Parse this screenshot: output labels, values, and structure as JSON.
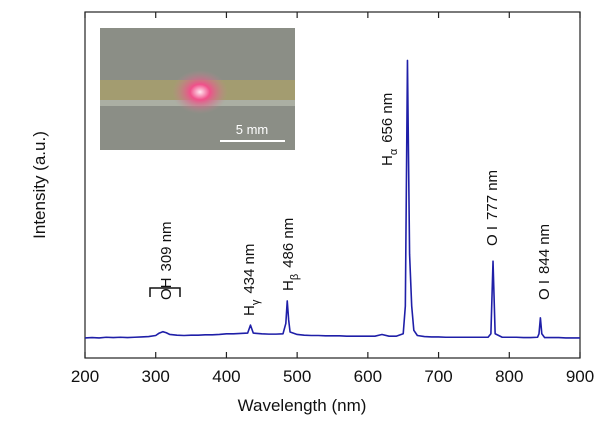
{
  "chart_data": {
    "type": "line",
    "xlabel": "Wavelength (nm)",
    "ylabel": "Intensity (a.u.)",
    "xlim": [
      200,
      900
    ],
    "xticks": [
      200,
      300,
      400,
      500,
      600,
      700,
      800,
      900
    ],
    "ylim": [
      0,
      100
    ],
    "color": "#1f1fa8",
    "x": [
      200,
      210,
      220,
      230,
      240,
      250,
      260,
      270,
      280,
      290,
      300,
      305,
      310,
      315,
      320,
      330,
      340,
      350,
      360,
      370,
      380,
      390,
      400,
      410,
      420,
      430,
      434,
      438,
      450,
      460,
      470,
      480,
      484,
      486,
      488,
      490,
      500,
      510,
      520,
      530,
      540,
      550,
      560,
      570,
      580,
      590,
      600,
      610,
      620,
      630,
      640,
      650,
      653,
      656,
      659,
      662,
      665,
      670,
      680,
      690,
      700,
      710,
      720,
      730,
      740,
      750,
      760,
      770,
      774,
      777,
      780,
      790,
      800,
      810,
      820,
      830,
      840,
      842,
      844,
      846,
      850,
      860,
      870,
      880,
      890,
      900
    ],
    "values": [
      5.8,
      5.9,
      5.8,
      6.0,
      5.9,
      6.0,
      5.9,
      6.0,
      6.1,
      6.2,
      6.5,
      7.2,
      7.6,
      7.3,
      6.8,
      6.6,
      6.5,
      6.6,
      6.6,
      6.7,
      6.7,
      6.8,
      7.0,
      7.0,
      7.1,
      7.2,
      9.5,
      7.2,
      7.0,
      6.9,
      6.9,
      7.0,
      10.0,
      16.5,
      11.0,
      7.5,
      6.8,
      6.6,
      6.5,
      6.5,
      6.4,
      6.4,
      6.4,
      6.3,
      6.3,
      6.3,
      6.3,
      6.3,
      6.8,
      6.3,
      6.3,
      7.0,
      15.0,
      86.0,
      30.0,
      15.0,
      8.0,
      6.5,
      6.2,
      6.1,
      6.1,
      6.0,
      6.0,
      6.0,
      6.0,
      6.0,
      6.0,
      6.0,
      7.0,
      28.0,
      7.0,
      6.0,
      6.0,
      6.0,
      5.9,
      5.9,
      6.0,
      7.0,
      11.6,
      7.0,
      5.9,
      5.9,
      5.9,
      5.8,
      5.8,
      5.8
    ],
    "annotations": [
      {
        "species": "OH",
        "wavelength": "309 nm"
      },
      {
        "species": "H",
        "sub": "γ",
        "wavelength": "434 nm"
      },
      {
        "species": "H",
        "sub": "β",
        "wavelength": "486 nm"
      },
      {
        "species": "H",
        "sub": "α",
        "wavelength": "656 nm"
      },
      {
        "species": "O I",
        "wavelength": "777 nm"
      },
      {
        "species": "O I",
        "wavelength": "844 nm"
      }
    ],
    "inset_scale": "5 mm"
  }
}
